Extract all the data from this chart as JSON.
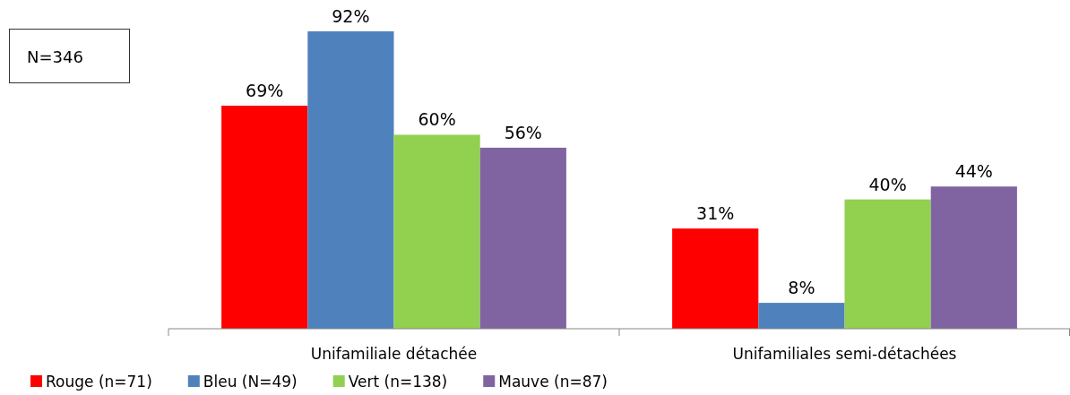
{
  "chart_data": {
    "type": "bar",
    "categories": [
      "Unifamiliale détachée",
      "Unifamiliales semi-détachées"
    ],
    "series": [
      {
        "name": "Rouge (n=71)",
        "color": "#ff0000",
        "values": [
          69,
          31
        ],
        "value_labels": [
          "69%",
          "31%"
        ]
      },
      {
        "name": "Bleu (N=49)",
        "color": "#4f81bd",
        "values": [
          92,
          8
        ],
        "value_labels": [
          "92%",
          "8%"
        ]
      },
      {
        "name": "Vert (n=138)",
        "color": "#92d050",
        "values": [
          60,
          40
        ],
        "value_labels": [
          "60%",
          "40%"
        ]
      },
      {
        "name": "Mauve (n=87)",
        "color": "#8064a2",
        "values": [
          56,
          44
        ],
        "value_labels": [
          "56%",
          "44%"
        ]
      }
    ],
    "annotations": [
      "N=346"
    ],
    "legend": "bottom left",
    "grid": false
  }
}
